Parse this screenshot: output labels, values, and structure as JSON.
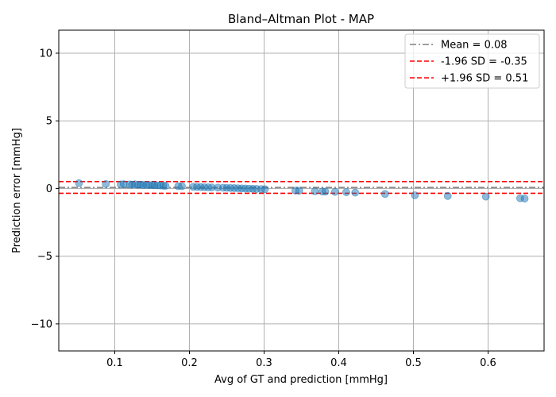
{
  "chart_data": {
    "type": "scatter",
    "title": "Bland–Altman Plot - MAP",
    "xlabel": "Avg of GT and prediction [mmHg]",
    "ylabel": "Prediction error [mmHg]",
    "xlim": [
      0.025,
      0.675
    ],
    "ylim": [
      -12,
      11.7
    ],
    "xticks": [
      0.1,
      0.2,
      0.3,
      0.4,
      0.5,
      0.6
    ],
    "xtick_labels": [
      "0.1",
      "0.2",
      "0.3",
      "0.4",
      "0.5",
      "0.6"
    ],
    "yticks": [
      -10,
      -5,
      0,
      5,
      10
    ],
    "ytick_labels": [
      "−10",
      "−5",
      "0",
      "5",
      "10"
    ],
    "grid": true,
    "legend_position": "top-right",
    "point_color": "#1f77b4",
    "points": [
      {
        "x": 0.052,
        "y": 0.4
      },
      {
        "x": 0.088,
        "y": 0.33
      },
      {
        "x": 0.108,
        "y": 0.3
      },
      {
        "x": 0.112,
        "y": 0.32
      },
      {
        "x": 0.12,
        "y": 0.3
      },
      {
        "x": 0.123,
        "y": 0.28
      },
      {
        "x": 0.127,
        "y": 0.31
      },
      {
        "x": 0.131,
        "y": 0.27
      },
      {
        "x": 0.135,
        "y": 0.28
      },
      {
        "x": 0.138,
        "y": 0.26
      },
      {
        "x": 0.142,
        "y": 0.27
      },
      {
        "x": 0.146,
        "y": 0.25
      },
      {
        "x": 0.15,
        "y": 0.26
      },
      {
        "x": 0.153,
        "y": 0.24
      },
      {
        "x": 0.157,
        "y": 0.23
      },
      {
        "x": 0.161,
        "y": 0.22
      },
      {
        "x": 0.165,
        "y": 0.21
      },
      {
        "x": 0.168,
        "y": 0.2
      },
      {
        "x": 0.185,
        "y": 0.18
      },
      {
        "x": 0.19,
        "y": 0.17
      },
      {
        "x": 0.205,
        "y": 0.13
      },
      {
        "x": 0.21,
        "y": 0.12
      },
      {
        "x": 0.215,
        "y": 0.11
      },
      {
        "x": 0.22,
        "y": 0.1
      },
      {
        "x": 0.225,
        "y": 0.09
      },
      {
        "x": 0.23,
        "y": 0.08
      },
      {
        "x": 0.238,
        "y": 0.07
      },
      {
        "x": 0.245,
        "y": 0.06
      },
      {
        "x": 0.25,
        "y": 0.05
      },
      {
        "x": 0.255,
        "y": 0.04
      },
      {
        "x": 0.26,
        "y": 0.03
      },
      {
        "x": 0.265,
        "y": 0.02
      },
      {
        "x": 0.27,
        "y": 0.01
      },
      {
        "x": 0.275,
        "y": 0.0
      },
      {
        "x": 0.28,
        "y": -0.01
      },
      {
        "x": 0.285,
        "y": -0.02
      },
      {
        "x": 0.29,
        "y": -0.03
      },
      {
        "x": 0.296,
        "y": -0.04
      },
      {
        "x": 0.301,
        "y": -0.05
      },
      {
        "x": 0.342,
        "y": -0.15
      },
      {
        "x": 0.347,
        "y": -0.16
      },
      {
        "x": 0.368,
        "y": -0.2
      },
      {
        "x": 0.378,
        "y": -0.22
      },
      {
        "x": 0.382,
        "y": -0.23
      },
      {
        "x": 0.395,
        "y": -0.25
      },
      {
        "x": 0.41,
        "y": -0.27
      },
      {
        "x": 0.422,
        "y": -0.3
      },
      {
        "x": 0.462,
        "y": -0.4
      },
      {
        "x": 0.502,
        "y": -0.5
      },
      {
        "x": 0.546,
        "y": -0.55
      },
      {
        "x": 0.597,
        "y": -0.6
      },
      {
        "x": 0.643,
        "y": -0.72
      },
      {
        "x": 0.649,
        "y": -0.74
      }
    ],
    "reference_lines": [
      {
        "label": "Mean = 0.08",
        "y": 0.08,
        "color": "#808080",
        "style": "dashdot"
      },
      {
        "label": "-1.96 SD = -0.35",
        "y": -0.35,
        "color": "#ff0000",
        "style": "dashed"
      },
      {
        "label": "+1.96 SD = 0.51",
        "y": 0.51,
        "color": "#ff0000",
        "style": "dashed"
      }
    ]
  }
}
